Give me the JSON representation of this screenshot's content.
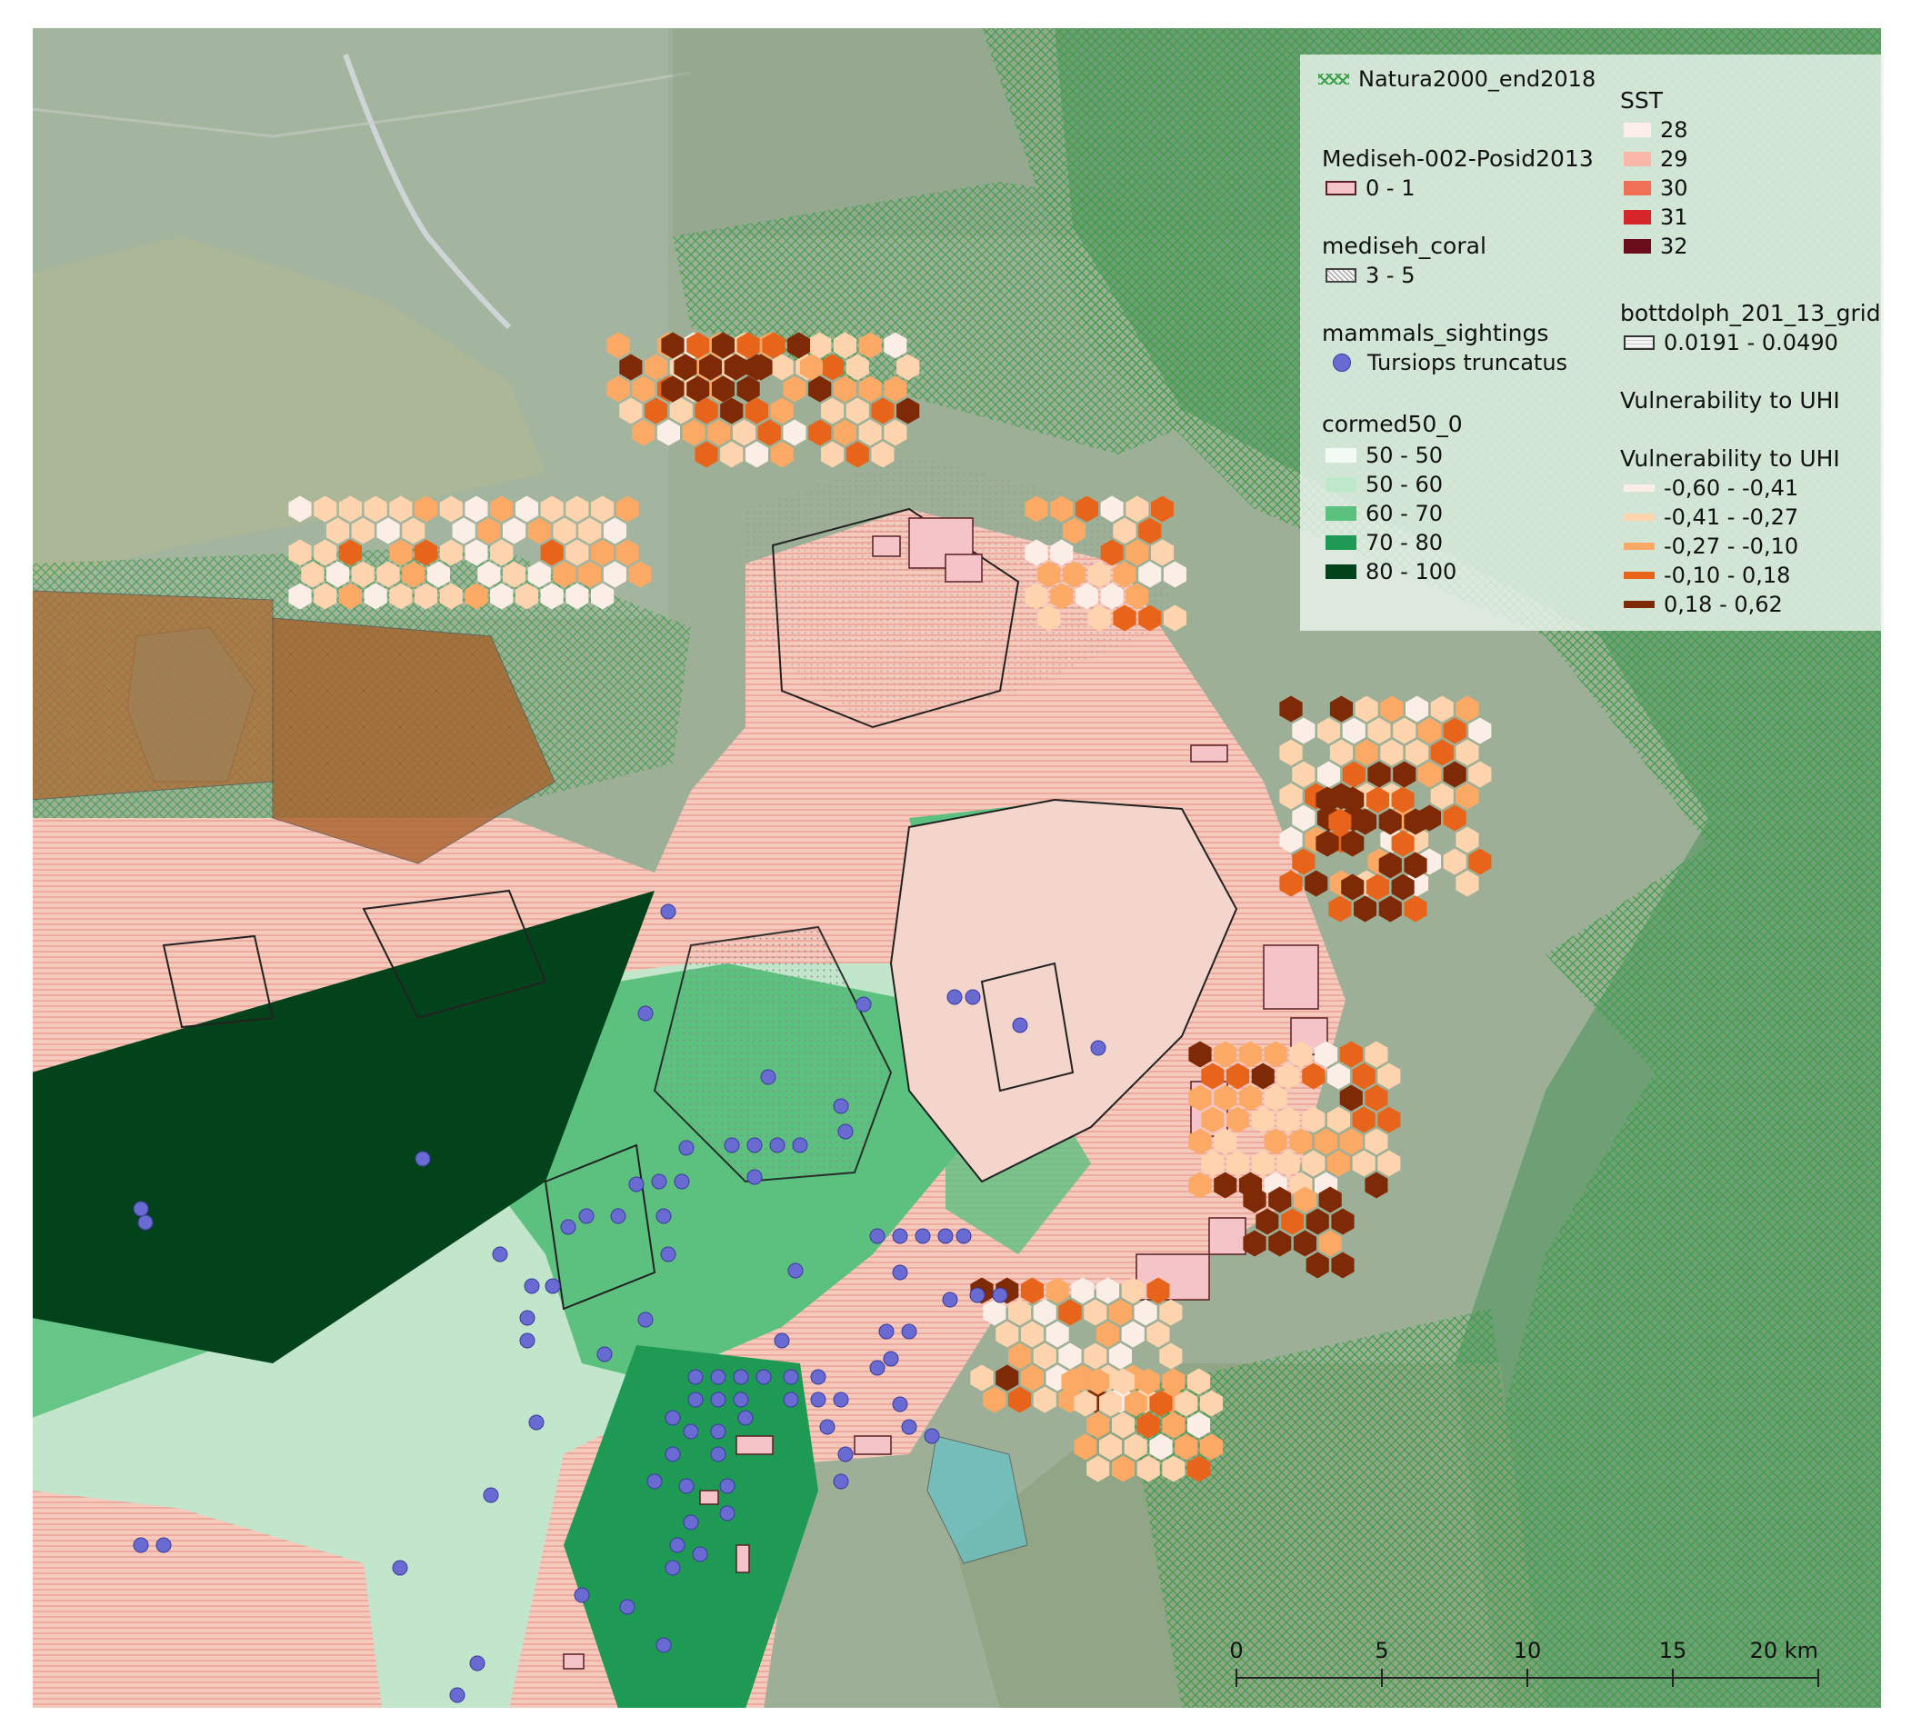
{
  "legend": {
    "natura": {
      "label": "Natura2000_end2018",
      "color": "#3aa04a"
    },
    "posidonia": {
      "title": "Mediseh-002-Posid2013",
      "label": "0 - 1",
      "color": "#f4c4c8"
    },
    "coral": {
      "title": "mediseh_coral",
      "label": "3 - 5"
    },
    "sightings": {
      "title": "mammals_sightings",
      "label": "Tursiops truncatus",
      "color": "#6a6bd2"
    },
    "cormed": {
      "title": "cormed50_0",
      "classes": [
        {
          "label": "50 - 50",
          "color": "#f2faf3"
        },
        {
          "label": "50 - 60",
          "color": "#bfe8cb"
        },
        {
          "label": "60 - 70",
          "color": "#5cc17f"
        },
        {
          "label": "70 - 80",
          "color": "#1e9a55"
        },
        {
          "label": "80 - 100",
          "color": "#03431b"
        }
      ]
    },
    "sst": {
      "title": "SST",
      "classes": [
        {
          "label": "28",
          "color": "#fdeeea"
        },
        {
          "label": "29",
          "color": "#f9b7a7"
        },
        {
          "label": "30",
          "color": "#f07055"
        },
        {
          "label": "31",
          "color": "#d7262b"
        },
        {
          "label": "32",
          "color": "#6b0e1c"
        }
      ]
    },
    "bottdolph": {
      "title": "bottdolph_201_13_grid",
      "label": "0.0191 - 0.0490"
    },
    "uhi_group": {
      "title": "Vulnerability to UHI"
    },
    "uhi": {
      "title": "Vulnerability to UHI",
      "classes": [
        {
          "label": "-0,60 - -0,41",
          "color": "#fbeee6"
        },
        {
          "label": "-0,41 - -0,27",
          "color": "#fdd4ae"
        },
        {
          "label": "-0,27 - -0,10",
          "color": "#fba965"
        },
        {
          "label": "-0,10 - 0,18",
          "color": "#e8641a"
        },
        {
          "label": "0,18 - 0,62",
          "color": "#7f2a06"
        }
      ]
    }
  },
  "scalebar": {
    "ticks": [
      "0",
      "5",
      "10",
      "15",
      "20"
    ],
    "unit": "km"
  }
}
